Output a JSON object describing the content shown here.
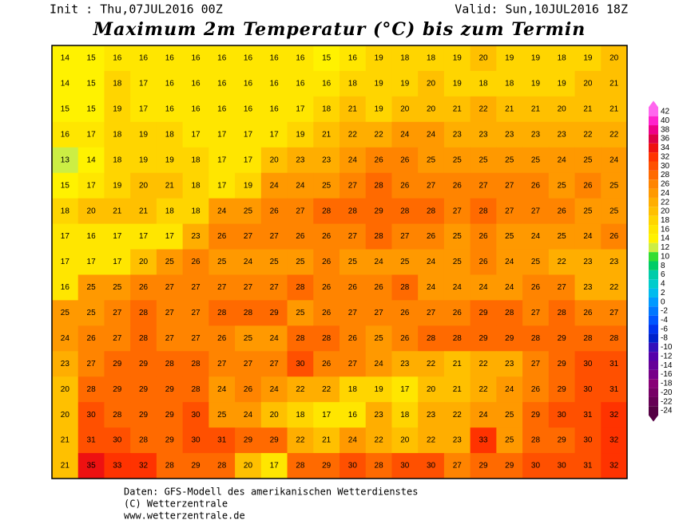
{
  "header": {
    "init": "Init : Thu,07JUL2016 00Z",
    "valid": "Valid: Sun,10JUL2016 18Z",
    "title": "Maximum 2m Temperatur (°C) bis zum Termin"
  },
  "map": {
    "grid": [
      [
        14,
        15,
        16,
        16,
        16,
        16,
        16,
        16,
        16,
        16,
        15,
        16,
        19,
        18,
        18,
        19,
        20,
        19,
        19,
        18,
        19,
        20
      ],
      [
        14,
        15,
        18,
        17,
        16,
        16,
        16,
        16,
        16,
        16,
        16,
        18,
        19,
        19,
        20,
        19,
        18,
        18,
        19,
        19,
        20,
        21
      ],
      [
        15,
        15,
        19,
        17,
        16,
        16,
        16,
        16,
        16,
        17,
        18,
        21,
        19,
        20,
        20,
        21,
        22,
        21,
        21,
        20,
        21,
        21
      ],
      [
        16,
        17,
        18,
        19,
        18,
        17,
        17,
        17,
        17,
        19,
        21,
        22,
        22,
        24,
        24,
        23,
        23,
        23,
        23,
        23,
        22,
        22
      ],
      [
        13,
        14,
        18,
        19,
        19,
        18,
        17,
        17,
        20,
        23,
        23,
        24,
        26,
        26,
        25,
        25,
        25,
        25,
        25,
        24,
        25,
        24
      ],
      [
        15,
        17,
        19,
        20,
        21,
        18,
        17,
        19,
        24,
        24,
        25,
        27,
        28,
        26,
        27,
        26,
        27,
        27,
        26,
        25,
        26,
        25
      ],
      [
        18,
        20,
        21,
        21,
        18,
        18,
        24,
        25,
        26,
        27,
        28,
        28,
        29,
        28,
        28,
        27,
        28,
        27,
        27,
        26,
        25,
        25
      ],
      [
        17,
        16,
        17,
        17,
        17,
        23,
        26,
        27,
        27,
        26,
        26,
        27,
        28,
        27,
        26,
        25,
        26,
        25,
        24,
        25,
        24,
        26
      ],
      [
        17,
        17,
        17,
        20,
        25,
        26,
        25,
        24,
        25,
        25,
        26,
        25,
        24,
        25,
        24,
        25,
        26,
        24,
        25,
        22,
        23,
        23
      ],
      [
        16,
        25,
        25,
        26,
        27,
        27,
        27,
        27,
        27,
        28,
        26,
        26,
        26,
        28,
        24,
        24,
        24,
        24,
        26,
        27,
        23,
        22
      ],
      [
        25,
        25,
        27,
        28,
        27,
        27,
        28,
        28,
        29,
        25,
        26,
        27,
        27,
        26,
        27,
        26,
        29,
        28,
        27,
        28,
        26,
        27
      ],
      [
        24,
        26,
        27,
        28,
        27,
        27,
        26,
        25,
        24,
        28,
        28,
        26,
        25,
        26,
        28,
        28,
        29,
        29,
        28,
        29,
        28,
        28
      ],
      [
        23,
        27,
        29,
        29,
        28,
        28,
        27,
        27,
        27,
        30,
        26,
        27,
        24,
        23,
        22,
        21,
        22,
        23,
        27,
        29,
        30,
        31
      ],
      [
        20,
        28,
        29,
        29,
        29,
        28,
        24,
        26,
        24,
        22,
        22,
        18,
        19,
        17,
        20,
        21,
        22,
        24,
        26,
        29,
        30,
        31
      ],
      [
        20,
        30,
        28,
        29,
        29,
        30,
        25,
        24,
        20,
        18,
        17,
        16,
        23,
        18,
        23,
        22,
        24,
        25,
        29,
        30,
        31,
        32
      ],
      [
        21,
        31,
        30,
        28,
        29,
        30,
        31,
        29,
        29,
        22,
        21,
        24,
        22,
        20,
        22,
        23,
        33,
        25,
        28,
        29,
        30,
        32
      ],
      [
        21,
        35,
        33,
        32,
        28,
        29,
        28,
        20,
        17,
        28,
        29,
        30,
        28,
        30,
        30,
        27,
        29,
        29,
        30,
        30,
        31,
        32
      ]
    ]
  },
  "legend": {
    "labels": [
      42,
      40,
      38,
      36,
      34,
      32,
      30,
      28,
      26,
      24,
      22,
      20,
      18,
      16,
      14,
      12,
      10,
      8,
      6,
      4,
      2,
      0,
      -2,
      -4,
      -6,
      -8,
      -10,
      -12,
      -14,
      -16,
      -18,
      -20,
      -22,
      -24
    ],
    "colors": [
      "#ff66ee",
      "#ff22cc",
      "#ee0088",
      "#dd0044",
      "#ee1111",
      "#ff3300",
      "#ff5000",
      "#ff6a00",
      "#ff8400",
      "#ff9900",
      "#ffae00",
      "#ffc000",
      "#ffd500",
      "#ffe600",
      "#fff200",
      "#ccee44",
      "#33dd33",
      "#00cc66",
      "#00ccaa",
      "#00cccc",
      "#00bbee",
      "#0099ff",
      "#0077ff",
      "#0055ff",
      "#0033ee",
      "#0022cc",
      "#3311bb",
      "#5500aa",
      "#660099",
      "#770088",
      "#880077",
      "#770066",
      "#660055",
      "#550044"
    ]
  },
  "footer": {
    "line1": "Daten: GFS-Modell des amerikanischen Wetterdienstes",
    "line2": "(C) Wetterzentrale",
    "line3": "www.wetterzentrale.de"
  }
}
